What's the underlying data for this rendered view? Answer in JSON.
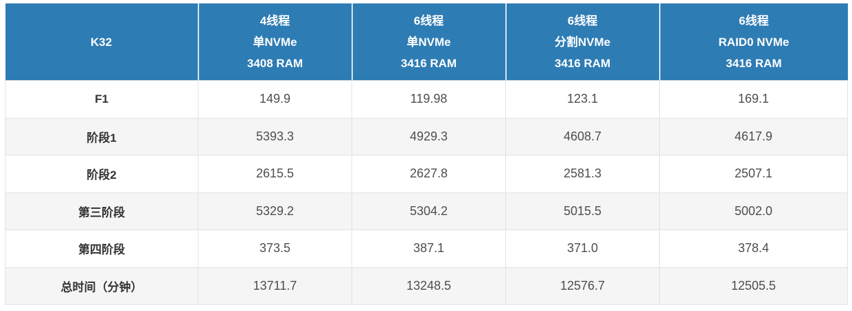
{
  "table": {
    "corner_label": "K32",
    "columns": [
      {
        "lines": [
          "4线程",
          "单NVMe",
          "3408 RAM"
        ]
      },
      {
        "lines": [
          "6线程",
          "单NVMe",
          "3416 RAM"
        ]
      },
      {
        "lines": [
          "6线程",
          "分割NVMe",
          "3416 RAM"
        ]
      },
      {
        "lines": [
          "6线程",
          "RAID0 NVMe",
          "3416 RAM"
        ]
      }
    ],
    "rows": [
      {
        "label": "F1",
        "values": [
          "149.9",
          "119.98",
          "123.1",
          "169.1"
        ]
      },
      {
        "label": "阶段1",
        "values": [
          "5393.3",
          "4929.3",
          "4608.7",
          "4617.9"
        ]
      },
      {
        "label": "阶段2",
        "values": [
          "2615.5",
          "2627.8",
          "2581.3",
          "2507.1"
        ]
      },
      {
        "label": "第三阶段",
        "values": [
          "5329.2",
          "5304.2",
          "5015.5",
          "5002.0"
        ]
      },
      {
        "label": "第四阶段",
        "values": [
          "373.5",
          "387.1",
          "371.0",
          "378.4"
        ]
      },
      {
        "label": "总时间（分钟）",
        "values": [
          "13711.7",
          "13248.5",
          "12576.7",
          "12505.5"
        ]
      }
    ],
    "colors": {
      "header_bg": "#2e7cb4",
      "header_text": "#ffffff",
      "header_divider": "#d9e4ee",
      "row_bg": "#ffffff",
      "row_alt_bg": "#f5f5f5",
      "cell_border": "#e2e2e2",
      "label_text": "#333333",
      "value_text": "#4d4d4d"
    }
  },
  "chart_data": {
    "type": "table",
    "title": "K32 plotting time benchmark",
    "columns": [
      "K32",
      "4线程 单NVMe 3408 RAM",
      "6线程 单NVMe 3416 RAM",
      "6线程 分割NVMe 3416 RAM",
      "6线程 RAID0 NVMe 3416 RAM"
    ],
    "rows": [
      [
        "F1",
        149.9,
        119.98,
        123.1,
        169.1
      ],
      [
        "阶段1",
        5393.3,
        4929.3,
        4608.7,
        4617.9
      ],
      [
        "阶段2",
        2615.5,
        2627.8,
        2581.3,
        2507.1
      ],
      [
        "第三阶段",
        5329.2,
        5304.2,
        5015.5,
        5002.0
      ],
      [
        "第四阶段",
        373.5,
        387.1,
        371.0,
        378.4
      ],
      [
        "总时间（分钟）",
        13711.7,
        13248.5,
        12576.7,
        12505.5
      ]
    ]
  }
}
